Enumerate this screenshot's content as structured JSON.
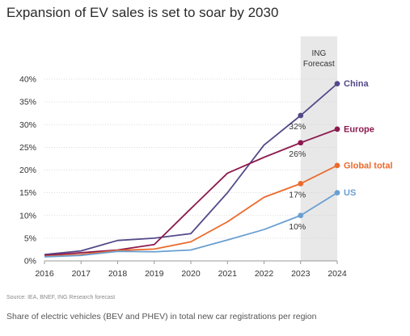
{
  "title": "Expansion of EV sales is set to soar by 2030",
  "source": "Source: IEA, BNEF, ING Research forecast",
  "caption": "Share of electric vehicles (BEV and PHEV) in total new car registrations per region",
  "forecast_label": [
    "ING",
    "Forecast"
  ],
  "colors": {
    "forecast_band": "#e8e8e8",
    "axis": "#999999",
    "grid": "#d0d0d0",
    "tick_text": "#333333"
  },
  "chart_data": {
    "type": "line",
    "title": "Expansion of EV sales is set to soar by 2030",
    "xlabel": "",
    "ylabel": "",
    "x": [
      2016,
      2017,
      2018,
      2019,
      2020,
      2021,
      2022,
      2023,
      2024
    ],
    "ylim": [
      0,
      40
    ],
    "yticks": [
      0,
      5,
      10,
      15,
      20,
      25,
      30,
      35,
      40
    ],
    "ytick_labels": [
      "0%",
      "5%",
      "10%",
      "15%",
      "20%",
      "25%",
      "30%",
      "35%",
      "40%"
    ],
    "grid": true,
    "forecast_range": [
      2023,
      2024
    ],
    "series": [
      {
        "name": "China",
        "color": "#55498a",
        "values": [
          1.4,
          2.2,
          4.5,
          5.0,
          6.0,
          15.0,
          25.5,
          32,
          39
        ],
        "markers": [
          2023,
          2024
        ],
        "annotation": {
          "x": 2023,
          "text": "32%"
        }
      },
      {
        "name": "Europe",
        "color": "#8c1a4e",
        "values": [
          1.2,
          1.8,
          2.4,
          3.6,
          11.5,
          19.3,
          22.8,
          26,
          29
        ],
        "markers": [
          2023,
          2024
        ],
        "annotation": {
          "x": 2023,
          "text": "26%"
        }
      },
      {
        "name": "Global total",
        "color": "#ec6a2b",
        "values": [
          1.0,
          1.4,
          2.3,
          2.6,
          4.2,
          8.6,
          14.0,
          17,
          21
        ],
        "markers": [
          2023,
          2024
        ],
        "annotation": {
          "x": 2023,
          "text": "17%"
        }
      },
      {
        "name": "US",
        "color": "#6a9fd1",
        "values": [
          0.9,
          1.2,
          2.1,
          2.0,
          2.4,
          4.6,
          6.9,
          10,
          15
        ],
        "markers": [
          2023,
          2024
        ],
        "annotation": {
          "x": 2023,
          "text": "10%"
        }
      }
    ]
  }
}
